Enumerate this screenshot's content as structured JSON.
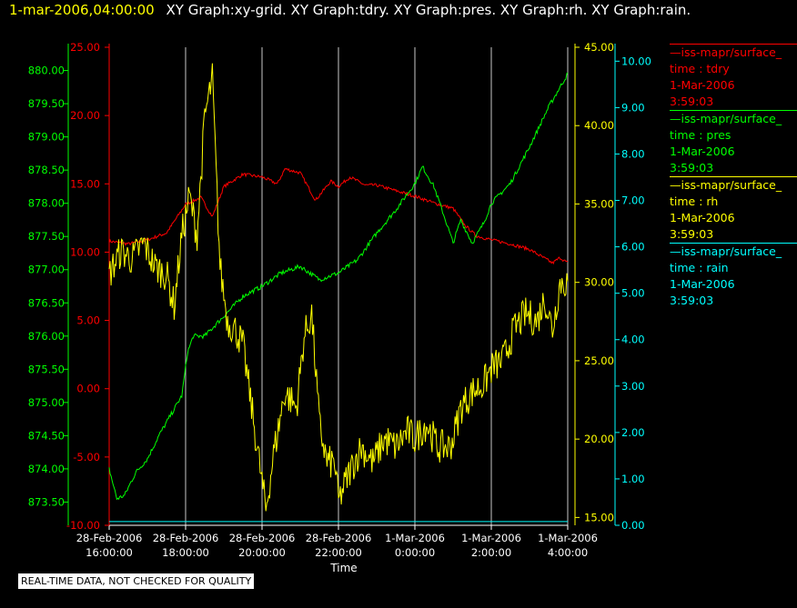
{
  "header": {
    "time": "1-mar-2006,04:00:00",
    "titles": "XY Graph:xy-grid.  XY Graph:tdry.  XY Graph:pres.  XY Graph:rh.  XY Graph:rain."
  },
  "note": "REAL-TIME DATA, NOT CHECKED FOR QUALITY",
  "colors": {
    "tdry": "#ff0000",
    "pres": "#00ff00",
    "rh": "#ffff00",
    "rain": "#00ffff",
    "grid": "#c8c8c8"
  },
  "legend": [
    {
      "name": "—iss-mapr/surface_",
      "var": "time : tdry",
      "date": "1-Mar-2006",
      "time": "3:59:03",
      "color": "#ff0000"
    },
    {
      "name": "—iss-mapr/surface_",
      "var": "time : pres",
      "date": "1-Mar-2006",
      "time": "3:59:03",
      "color": "#00ff00"
    },
    {
      "name": "—iss-mapr/surface_",
      "var": "time : rh",
      "date": "1-Mar-2006",
      "time": "3:59:03",
      "color": "#ffff00"
    },
    {
      "name": "—iss-mapr/surface_",
      "var": "time : rain",
      "date": "1-Mar-2006",
      "time": "3:59:03",
      "color": "#00ffff"
    }
  ],
  "chart_data": {
    "type": "line",
    "xlabel": "Time",
    "x_ticks": [
      {
        "date": "28-Feb-2006",
        "time": "16:00:00",
        "hour": 16
      },
      {
        "date": "28-Feb-2006",
        "time": "18:00:00",
        "hour": 18
      },
      {
        "date": "28-Feb-2006",
        "time": "20:00:00",
        "hour": 20
      },
      {
        "date": "28-Feb-2006",
        "time": "22:00:00",
        "hour": 22
      },
      {
        "date": "1-Mar-2006",
        "time": "0:00:00",
        "hour": 24
      },
      {
        "date": "1-Mar-2006",
        "time": "2:00:00",
        "hour": 26
      },
      {
        "date": "1-Mar-2006",
        "time": "4:00:00",
        "hour": 28
      }
    ],
    "xlim_hours": [
      16,
      28
    ],
    "axes": {
      "tdry": {
        "ylim": [
          -10,
          25
        ],
        "ticks": [
          "-10.00",
          "-5.00",
          "0.00",
          "5.00",
          "10.00",
          "15.00",
          "20.00",
          "25.00"
        ]
      },
      "pres": {
        "ylim": [
          873.15,
          880.35
        ],
        "ticks": [
          "873.50",
          "874.00",
          "874.50",
          "875.00",
          "875.50",
          "876.00",
          "876.50",
          "877.00",
          "877.50",
          "878.00",
          "878.50",
          "879.00",
          "879.50",
          "880.00"
        ]
      },
      "rh": {
        "ylim": [
          14.5,
          45.0
        ],
        "ticks": [
          "15.00",
          "20.00",
          "25.00",
          "30.00",
          "35.00",
          "40.00",
          "45.00"
        ]
      },
      "rain": {
        "ylim": [
          0,
          10.3
        ],
        "ticks": [
          "0.00",
          "1.00",
          "2.00",
          "3.00",
          "4.00",
          "5.00",
          "6.00",
          "7.00",
          "8.00",
          "9.00",
          "10.00"
        ]
      }
    },
    "series": [
      {
        "key": "tdry",
        "points": [
          [
            16.0,
            10.8
          ],
          [
            16.5,
            10.6
          ],
          [
            17.0,
            10.9
          ],
          [
            17.5,
            11.4
          ],
          [
            18.0,
            13.5
          ],
          [
            18.4,
            14.0
          ],
          [
            18.7,
            12.6
          ],
          [
            19.0,
            14.8
          ],
          [
            19.5,
            15.7
          ],
          [
            20.0,
            15.5
          ],
          [
            20.4,
            15.0
          ],
          [
            20.6,
            16.1
          ],
          [
            21.0,
            15.8
          ],
          [
            21.4,
            13.8
          ],
          [
            21.8,
            15.2
          ],
          [
            22.0,
            14.8
          ],
          [
            22.3,
            15.5
          ],
          [
            22.7,
            14.9
          ],
          [
            23.0,
            14.9
          ],
          [
            23.5,
            14.5
          ],
          [
            24.0,
            14.1
          ],
          [
            24.5,
            13.6
          ],
          [
            25.0,
            13.2
          ],
          [
            25.3,
            12.0
          ],
          [
            25.6,
            11.2
          ],
          [
            26.0,
            10.9
          ],
          [
            26.5,
            10.6
          ],
          [
            27.0,
            10.2
          ],
          [
            27.3,
            9.7
          ],
          [
            27.6,
            9.2
          ],
          [
            27.8,
            9.6
          ],
          [
            28.0,
            9.2
          ]
        ]
      },
      {
        "key": "pres",
        "points": [
          [
            16.0,
            874.0
          ],
          [
            16.2,
            873.55
          ],
          [
            16.4,
            873.6
          ],
          [
            16.7,
            873.95
          ],
          [
            17.0,
            874.15
          ],
          [
            17.3,
            874.5
          ],
          [
            17.6,
            874.8
          ],
          [
            17.9,
            875.1
          ],
          [
            18.05,
            875.75
          ],
          [
            18.2,
            876.0
          ],
          [
            18.5,
            876.0
          ],
          [
            19.0,
            876.3
          ],
          [
            19.5,
            876.6
          ],
          [
            20.0,
            876.75
          ],
          [
            20.5,
            876.95
          ],
          [
            21.0,
            877.05
          ],
          [
            21.5,
            876.85
          ],
          [
            22.0,
            876.95
          ],
          [
            22.5,
            877.15
          ],
          [
            23.0,
            877.55
          ],
          [
            23.5,
            877.9
          ],
          [
            24.0,
            878.3
          ],
          [
            24.2,
            878.55
          ],
          [
            24.5,
            878.25
          ],
          [
            24.8,
            877.75
          ],
          [
            25.0,
            877.4
          ],
          [
            25.2,
            877.75
          ],
          [
            25.5,
            877.4
          ],
          [
            25.8,
            877.7
          ],
          [
            26.0,
            878.0
          ],
          [
            26.5,
            878.3
          ],
          [
            27.0,
            878.85
          ],
          [
            27.5,
            879.45
          ],
          [
            28.0,
            879.95
          ]
        ]
      },
      {
        "key": "rh",
        "points": [
          [
            16.0,
            30.5
          ],
          [
            16.3,
            32.0
          ],
          [
            16.6,
            31.5
          ],
          [
            16.9,
            32.5
          ],
          [
            17.2,
            31.0
          ],
          [
            17.5,
            30.5
          ],
          [
            17.7,
            28.5
          ],
          [
            17.9,
            33.0
          ],
          [
            18.1,
            35.5
          ],
          [
            18.3,
            33.0
          ],
          [
            18.5,
            40.5
          ],
          [
            18.7,
            43.0
          ],
          [
            18.9,
            31.0
          ],
          [
            19.1,
            27.5
          ],
          [
            19.3,
            27.0
          ],
          [
            19.5,
            26.0
          ],
          [
            19.7,
            22.5
          ],
          [
            19.9,
            19.0
          ],
          [
            20.1,
            15.5
          ],
          [
            20.3,
            19.0
          ],
          [
            20.6,
            23.0
          ],
          [
            20.9,
            22.0
          ],
          [
            21.1,
            26.5
          ],
          [
            21.3,
            28.0
          ],
          [
            21.5,
            21.0
          ],
          [
            21.7,
            18.5
          ],
          [
            21.9,
            18.5
          ],
          [
            22.0,
            16.0
          ],
          [
            22.3,
            18.0
          ],
          [
            22.6,
            19.5
          ],
          [
            22.9,
            18.5
          ],
          [
            23.2,
            20.0
          ],
          [
            23.5,
            19.5
          ],
          [
            23.8,
            20.5
          ],
          [
            24.0,
            20.0
          ],
          [
            24.3,
            21.0
          ],
          [
            24.6,
            19.5
          ],
          [
            24.9,
            19.5
          ],
          [
            25.0,
            20.0
          ],
          [
            25.2,
            22.0
          ],
          [
            25.5,
            23.0
          ],
          [
            25.8,
            23.5
          ],
          [
            26.0,
            24.5
          ],
          [
            26.3,
            25.0
          ],
          [
            26.6,
            27.0
          ],
          [
            26.9,
            28.0
          ],
          [
            27.2,
            27.5
          ],
          [
            27.4,
            29.0
          ],
          [
            27.6,
            27.0
          ],
          [
            27.8,
            30.0
          ],
          [
            28.0,
            30.0
          ]
        ]
      },
      {
        "key": "rain",
        "points": [
          [
            16.0,
            0.08
          ],
          [
            28.0,
            0.08
          ]
        ]
      }
    ]
  }
}
